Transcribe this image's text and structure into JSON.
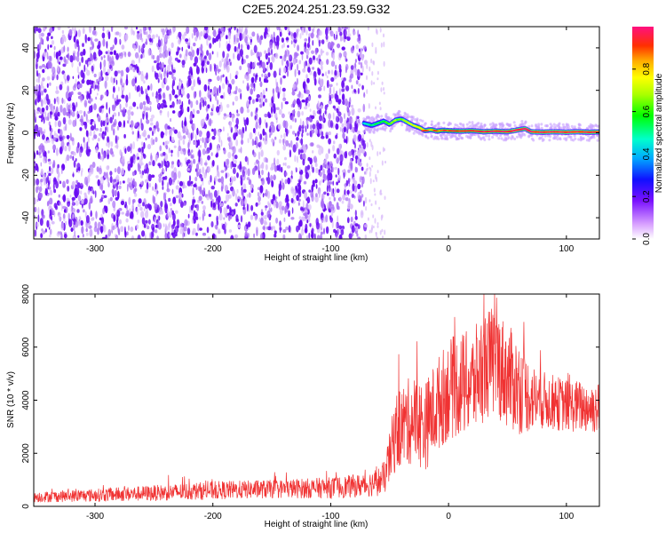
{
  "title": "C2E5.2024.251.23.59.G32",
  "chart_data": [
    {
      "type": "heatmap",
      "title": "C2E5.2024.251.23.59.G32",
      "xlabel": "Height of straight line (km)",
      "ylabel": "Frequency (Hz)",
      "xlim": [
        -352,
        128
      ],
      "ylim": [
        -50,
        50
      ],
      "xticks": [
        -300,
        -200,
        -100,
        0,
        100
      ],
      "yticks": [
        -40,
        -20,
        0,
        20,
        40
      ],
      "colorbar": {
        "label": "Normalized spectral amplitude",
        "range": [
          0,
          1
        ],
        "ticks": [
          0.0,
          0.2,
          0.4,
          0.6,
          0.8
        ],
        "tick_labels": [
          "0.0",
          "0.2",
          "0.4",
          "0.6",
          "0.8"
        ]
      },
      "noise_region": {
        "x_range": [
          -352,
          -70
        ],
        "freq_range": [
          -50,
          50
        ],
        "amplitude_range": [
          0.05,
          0.2
        ]
      },
      "signal_track": {
        "x": [
          -72,
          -65,
          -60,
          -55,
          -50,
          -45,
          -40,
          -35,
          -30,
          -25,
          -20,
          -15,
          -10,
          -5,
          0,
          10,
          20,
          30,
          40,
          50,
          60,
          65,
          70,
          80,
          90,
          100,
          110,
          120,
          128
        ],
        "frequency": [
          4.5,
          3.5,
          4.5,
          5.5,
          4,
          6,
          6.5,
          5,
          3.5,
          2.5,
          1,
          1.5,
          0.8,
          1.2,
          1,
          0.8,
          1,
          0.5,
          0.8,
          0.5,
          1.5,
          2,
          0.5,
          0.3,
          0.5,
          0.3,
          0.5,
          0.3,
          0.4
        ],
        "amplitude": [
          0.3,
          0.4,
          0.4,
          0.45,
          0.5,
          0.55,
          0.5,
          0.6,
          0.6,
          0.65,
          0.7,
          0.7,
          0.75,
          0.75,
          0.8,
          0.85,
          0.85,
          0.9,
          0.9,
          0.9,
          0.95,
          0.95,
          0.95,
          0.95,
          0.95,
          0.95,
          0.95,
          0.95,
          0.95
        ]
      }
    },
    {
      "type": "line",
      "xlabel": "Height of straight line (km)",
      "ylabel": "SNR (10 * v/v)",
      "xlim": [
        -352,
        128
      ],
      "ylim": [
        0,
        8000
      ],
      "xticks": [
        -300,
        -200,
        -100,
        0,
        100
      ],
      "yticks": [
        0,
        2000,
        4000,
        6000,
        8000
      ],
      "color": "#f03232",
      "series": [
        {
          "x": [
            -352,
            -300,
            -250,
            -200,
            -150,
            -100,
            -70,
            -55,
            -50,
            -45,
            -40,
            -30,
            -20,
            -10,
            0,
            10,
            20,
            30,
            40,
            50,
            60,
            70,
            80,
            100,
            128
          ],
          "values": [
            350,
            420,
            500,
            600,
            650,
            700,
            800,
            1000,
            1800,
            2800,
            3000,
            3300,
            3000,
            3800,
            4400,
            4600,
            4600,
            5300,
            5500,
            4900,
            4500,
            4100,
            4000,
            3800,
            3700
          ],
          "spread": [
            200,
            250,
            300,
            350,
            350,
            400,
            450,
            600,
            1000,
            1500,
            1600,
            1700,
            1700,
            1800,
            1900,
            2000,
            2000,
            2100,
            2100,
            2000,
            1800,
            1300,
            1100,
            1000,
            1000
          ]
        }
      ]
    }
  ]
}
